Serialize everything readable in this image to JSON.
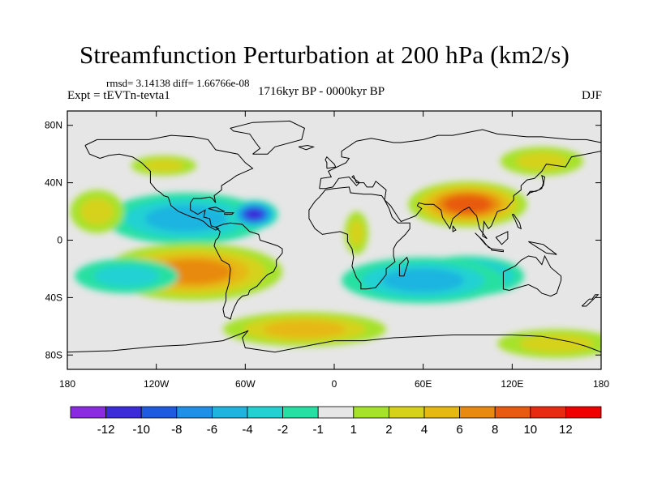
{
  "chart_data": {
    "type": "heatmap",
    "title": "Streamfunction Perturbation at 200 hPa (km2/s)",
    "stats_text": "rmsd= 3.14138   diff= 1.66766e-08",
    "left_label": "Expt = tEVTn-tevta1",
    "center_label": "1716kyr BP - 0000kyr BP",
    "right_label": "DJF",
    "map": {
      "lon_range": [
        -180,
        180
      ],
      "lat_range": [
        -90,
        90
      ]
    },
    "x_ticks": [
      {
        "value": -180,
        "label": "180"
      },
      {
        "value": -120,
        "label": "120W"
      },
      {
        "value": -60,
        "label": "60W"
      },
      {
        "value": 0,
        "label": "0"
      },
      {
        "value": 60,
        "label": "60E"
      },
      {
        "value": 120,
        "label": "120E"
      },
      {
        "value": 180,
        "label": "180"
      }
    ],
    "y_ticks": [
      {
        "value": 80,
        "label": "80N"
      },
      {
        "value": 40,
        "label": "40N"
      },
      {
        "value": 0,
        "label": "0"
      },
      {
        "value": -40,
        "label": "40S"
      },
      {
        "value": -80,
        "label": "80S"
      }
    ],
    "colorbar": {
      "levels": [
        -12,
        -10,
        -8,
        -6,
        -4,
        -2,
        -1,
        1,
        2,
        4,
        6,
        8,
        10,
        12
      ],
      "labels": [
        "-12",
        "-10",
        "-8",
        "-6",
        "-4",
        "-2",
        "-1",
        "1",
        "2",
        "4",
        "6",
        "8",
        "10",
        "12"
      ],
      "colors": [
        "#8a2be2",
        "#3b2bd9",
        "#1f5be0",
        "#1e90e8",
        "#1fb4e0",
        "#23d1d3",
        "#25e0a2",
        "#e6e6e6",
        "#a6e22a",
        "#d6d21a",
        "#e6b812",
        "#e88a10",
        "#e85a10",
        "#e82a10",
        "#f00000"
      ]
    },
    "anomaly_centers": [
      {
        "lon": -100,
        "lat": 15,
        "value": -4,
        "rx": 55,
        "ry": 18
      },
      {
        "lon": -54,
        "lat": 18,
        "value": -10,
        "rx": 16,
        "ry": 10
      },
      {
        "lon": -80,
        "lat": -25,
        "value": 10,
        "rx": 32,
        "ry": 16
      },
      {
        "lon": -95,
        "lat": -22,
        "value": 6,
        "rx": 60,
        "ry": 20
      },
      {
        "lon": 90,
        "lat": 25,
        "value": 8,
        "rx": 40,
        "ry": 16
      },
      {
        "lon": 90,
        "lat": -25,
        "value": -6,
        "rx": 38,
        "ry": 14
      },
      {
        "lon": 60,
        "lat": -28,
        "value": -4,
        "rx": 55,
        "ry": 16
      },
      {
        "lon": 140,
        "lat": 55,
        "value": 2,
        "rx": 28,
        "ry": 10
      },
      {
        "lon": -115,
        "lat": 52,
        "value": 2,
        "rx": 22,
        "ry": 7
      },
      {
        "lon": -20,
        "lat": -62,
        "value": 4,
        "rx": 55,
        "ry": 12
      },
      {
        "lon": 150,
        "lat": -72,
        "value": 2,
        "rx": 40,
        "ry": 10
      },
      {
        "lon": -160,
        "lat": 20,
        "value": 2,
        "rx": 18,
        "ry": 15
      },
      {
        "lon": 15,
        "lat": 5,
        "value": 2,
        "rx": 8,
        "ry": 15
      },
      {
        "lon": -140,
        "lat": -25,
        "value": -2,
        "rx": 35,
        "ry": 12
      }
    ]
  }
}
